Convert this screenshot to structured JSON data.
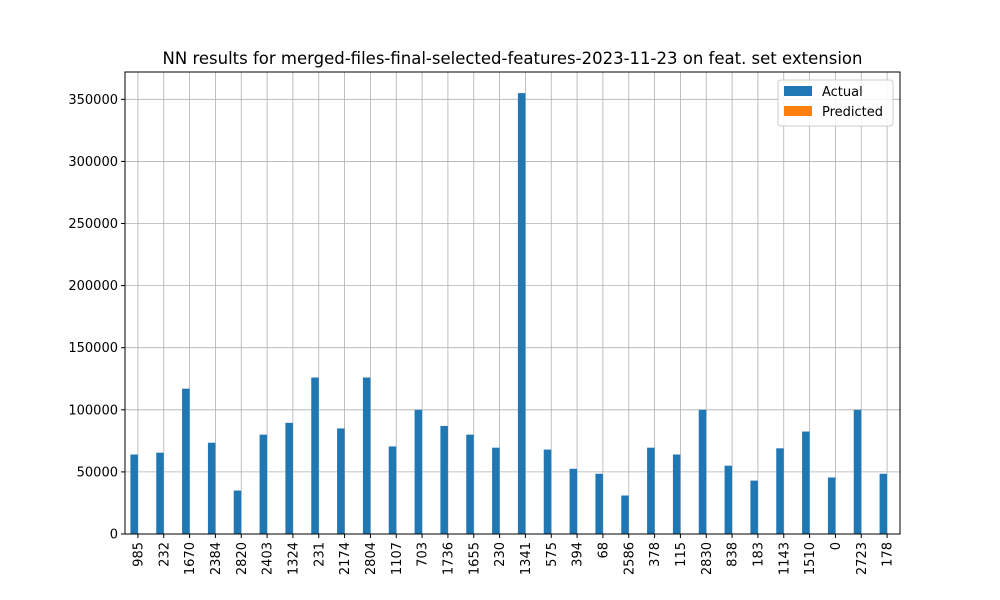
{
  "chart_data": {
    "type": "bar",
    "title": "NN results for merged-files-final-selected-features-2023-11-23 on feat. set extension",
    "xlabel": "",
    "ylabel": "",
    "categories": [
      "985",
      "232",
      "1670",
      "2384",
      "2820",
      "2403",
      "1324",
      "231",
      "2174",
      "2804",
      "1107",
      "703",
      "1736",
      "1655",
      "230",
      "1341",
      "575",
      "394",
      "68",
      "2586",
      "378",
      "115",
      "2830",
      "838",
      "183",
      "1143",
      "1510",
      "0",
      "2723",
      "178"
    ],
    "series": [
      {
        "name": "Actual",
        "color": "#1f77b4",
        "values": [
          64000,
          65500,
          117000,
          73500,
          35000,
          80000,
          89500,
          126000,
          85000,
          126000,
          70500,
          100000,
          87000,
          80000,
          69500,
          355000,
          68000,
          52500,
          48500,
          31000,
          69500,
          64000,
          100000,
          55000,
          43000,
          69000,
          82500,
          45500,
          100000,
          48500
        ]
      },
      {
        "name": "Predicted",
        "color": "#ff7f0e",
        "values": [
          0,
          0,
          0,
          0,
          0,
          0,
          0,
          0,
          0,
          0,
          0,
          0,
          0,
          0,
          0,
          0,
          0,
          0,
          0,
          0,
          0,
          0,
          0,
          0,
          0,
          0,
          0,
          0,
          0,
          0
        ]
      }
    ],
    "ylim": [
      0,
      372000
    ],
    "yticks": [
      0,
      50000,
      100000,
      150000,
      200000,
      250000,
      300000,
      350000
    ],
    "grid": true,
    "legend_position": "upper right"
  }
}
